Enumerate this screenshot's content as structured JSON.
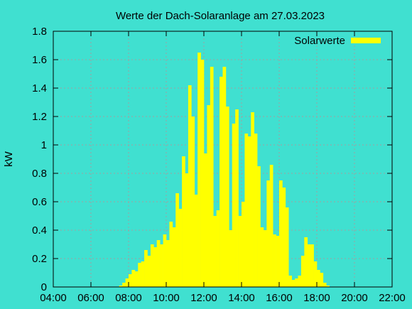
{
  "chart_data": {
    "type": "area",
    "title": "Werte der Dach-Solaranlage am 27.03.2023",
    "xlabel": "",
    "ylabel": "kW",
    "xlim": [
      "04:00",
      "22:00"
    ],
    "ylim": [
      0,
      1.8
    ],
    "x_ticks": [
      "04:00",
      "06:00",
      "08:00",
      "10:00",
      "12:00",
      "14:00",
      "16:00",
      "18:00",
      "20:00",
      "22:00"
    ],
    "y_ticks": [
      "0",
      "0.2",
      "0.4",
      "0.6",
      "0.8",
      "1",
      "1.2",
      "1.4",
      "1.6",
      "1.8"
    ],
    "grid": true,
    "legend_position": "top-right",
    "colors": {
      "background": "#40e0d0",
      "series": "#ffff00",
      "grid": "#a0a0a0"
    },
    "series": [
      {
        "name": "Solarwerte",
        "x": [
          "07:35",
          "07:45",
          "07:55",
          "08:05",
          "08:15",
          "08:25",
          "08:35",
          "08:45",
          "08:55",
          "09:05",
          "09:15",
          "09:25",
          "09:35",
          "09:45",
          "09:55",
          "10:05",
          "10:15",
          "10:25",
          "10:35",
          "10:45",
          "10:55",
          "11:05",
          "11:15",
          "11:25",
          "11:35",
          "11:45",
          "11:55",
          "12:05",
          "12:15",
          "12:25",
          "12:35",
          "12:45",
          "12:55",
          "13:05",
          "13:15",
          "13:25",
          "13:35",
          "13:45",
          "13:55",
          "14:05",
          "14:15",
          "14:25",
          "14:35",
          "14:45",
          "14:55",
          "15:05",
          "15:15",
          "15:25",
          "15:35",
          "15:45",
          "15:55",
          "16:05",
          "16:15",
          "16:25",
          "16:35",
          "16:45",
          "16:55",
          "17:05",
          "17:15",
          "17:25",
          "17:35",
          "17:45",
          "17:55",
          "18:05",
          "18:15",
          "18:25",
          "18:35",
          "18:45",
          "18:55",
          "19:05",
          "19:15"
        ],
        "y": [
          0.01,
          0.03,
          0.06,
          0.09,
          0.12,
          0.11,
          0.17,
          0.18,
          0.26,
          0.22,
          0.3,
          0.28,
          0.33,
          0.3,
          0.37,
          0.33,
          0.46,
          0.42,
          0.66,
          0.55,
          0.92,
          0.8,
          1.42,
          1.2,
          0.65,
          1.65,
          1.6,
          0.94,
          1.28,
          1.55,
          0.5,
          0.54,
          1.48,
          1.55,
          1.27,
          0.4,
          1.15,
          1.25,
          0.5,
          0.6,
          1.08,
          1.06,
          1.23,
          1.08,
          0.85,
          0.42,
          0.4,
          0.75,
          0.86,
          0.37,
          0.36,
          0.75,
          0.7,
          0.56,
          0.08,
          0.05,
          0.06,
          0.08,
          0.22,
          0.35,
          0.3,
          0.3,
          0.18,
          0.12,
          0.1,
          0.03,
          0.01,
          0.0,
          0.0,
          0.0,
          0.0
        ]
      }
    ]
  }
}
